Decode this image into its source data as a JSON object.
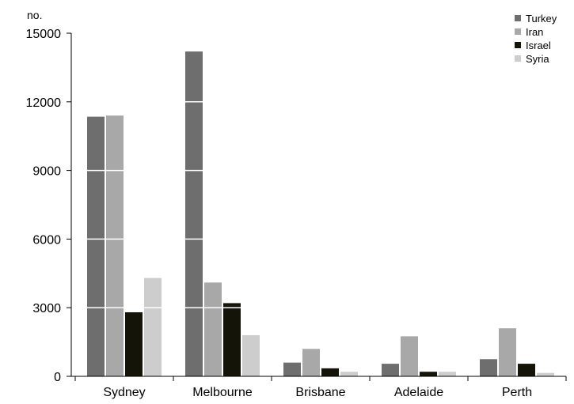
{
  "chart_data": {
    "type": "bar",
    "title": "",
    "xlabel": "",
    "ylabel": "no.",
    "ylim": [
      0,
      15000
    ],
    "yticks": [
      0,
      3000,
      6000,
      9000,
      12000,
      15000
    ],
    "grid": "white lines across bars at y ticks",
    "legend_position": "top-right",
    "categories": [
      "Sydney",
      "Melbourne",
      "Brisbane",
      "Adelaide",
      "Perth"
    ],
    "series": [
      {
        "name": "Turkey",
        "color": "#6e6e6e",
        "values": [
          11350,
          14200,
          600,
          550,
          750
        ]
      },
      {
        "name": "Iran",
        "color": "#a8a8a8",
        "values": [
          11400,
          4100,
          1200,
          1750,
          2100
        ]
      },
      {
        "name": "Israel",
        "color": "#141408",
        "values": [
          2800,
          3200,
          350,
          200,
          550
        ]
      },
      {
        "name": "Syria",
        "color": "#cdcdcd",
        "values": [
          4300,
          1800,
          200,
          200,
          150
        ]
      }
    ]
  }
}
